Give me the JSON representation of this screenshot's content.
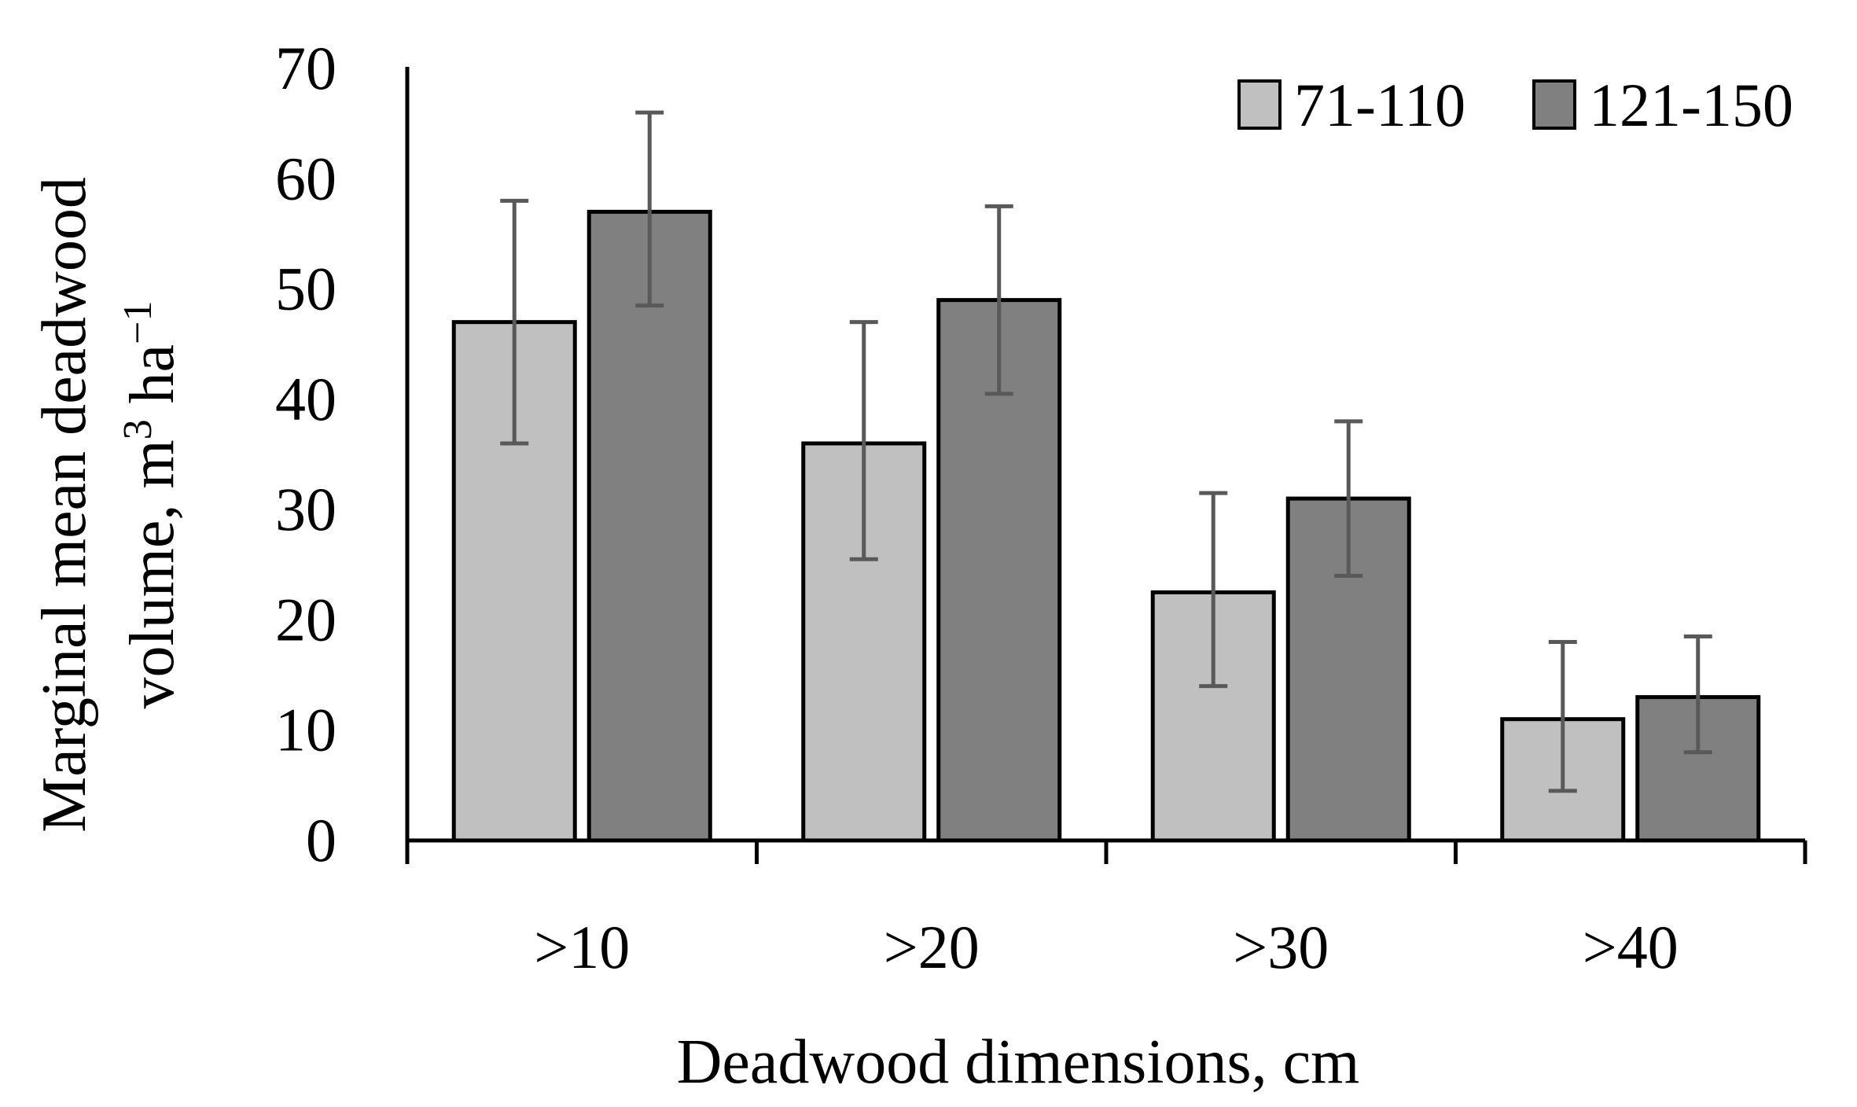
{
  "chart_data": {
    "type": "bar",
    "categories": [
      ">10",
      ">20",
      ">30",
      ">40"
    ],
    "series": [
      {
        "name": "71-110",
        "values": [
          47,
          36,
          22.5,
          11
        ],
        "error_low": [
          36,
          25.5,
          14,
          4.5
        ],
        "error_high": [
          58,
          47,
          31.5,
          18
        ],
        "color": "#c0c0c0"
      },
      {
        "name": "121-150",
        "values": [
          57,
          49,
          31,
          13
        ],
        "error_low": [
          48.5,
          40.5,
          24,
          8
        ],
        "error_high": [
          66,
          57.5,
          38,
          18.5
        ],
        "color": "#808080"
      }
    ],
    "xlabel": "Deadwood dimensions, cm",
    "ylabel_line1": "Marginal mean deadwood",
    "ylabel_line2_pre": "volume, m",
    "ylabel_sup1": "3",
    "ylabel_line2_mid": " ha",
    "ylabel_sup2": "−1",
    "ylim": [
      0,
      70
    ],
    "yticks": [
      "0",
      "10",
      "20",
      "30",
      "40",
      "50",
      "60",
      "70"
    ],
    "legend_position": "top-right",
    "grid": false
  }
}
